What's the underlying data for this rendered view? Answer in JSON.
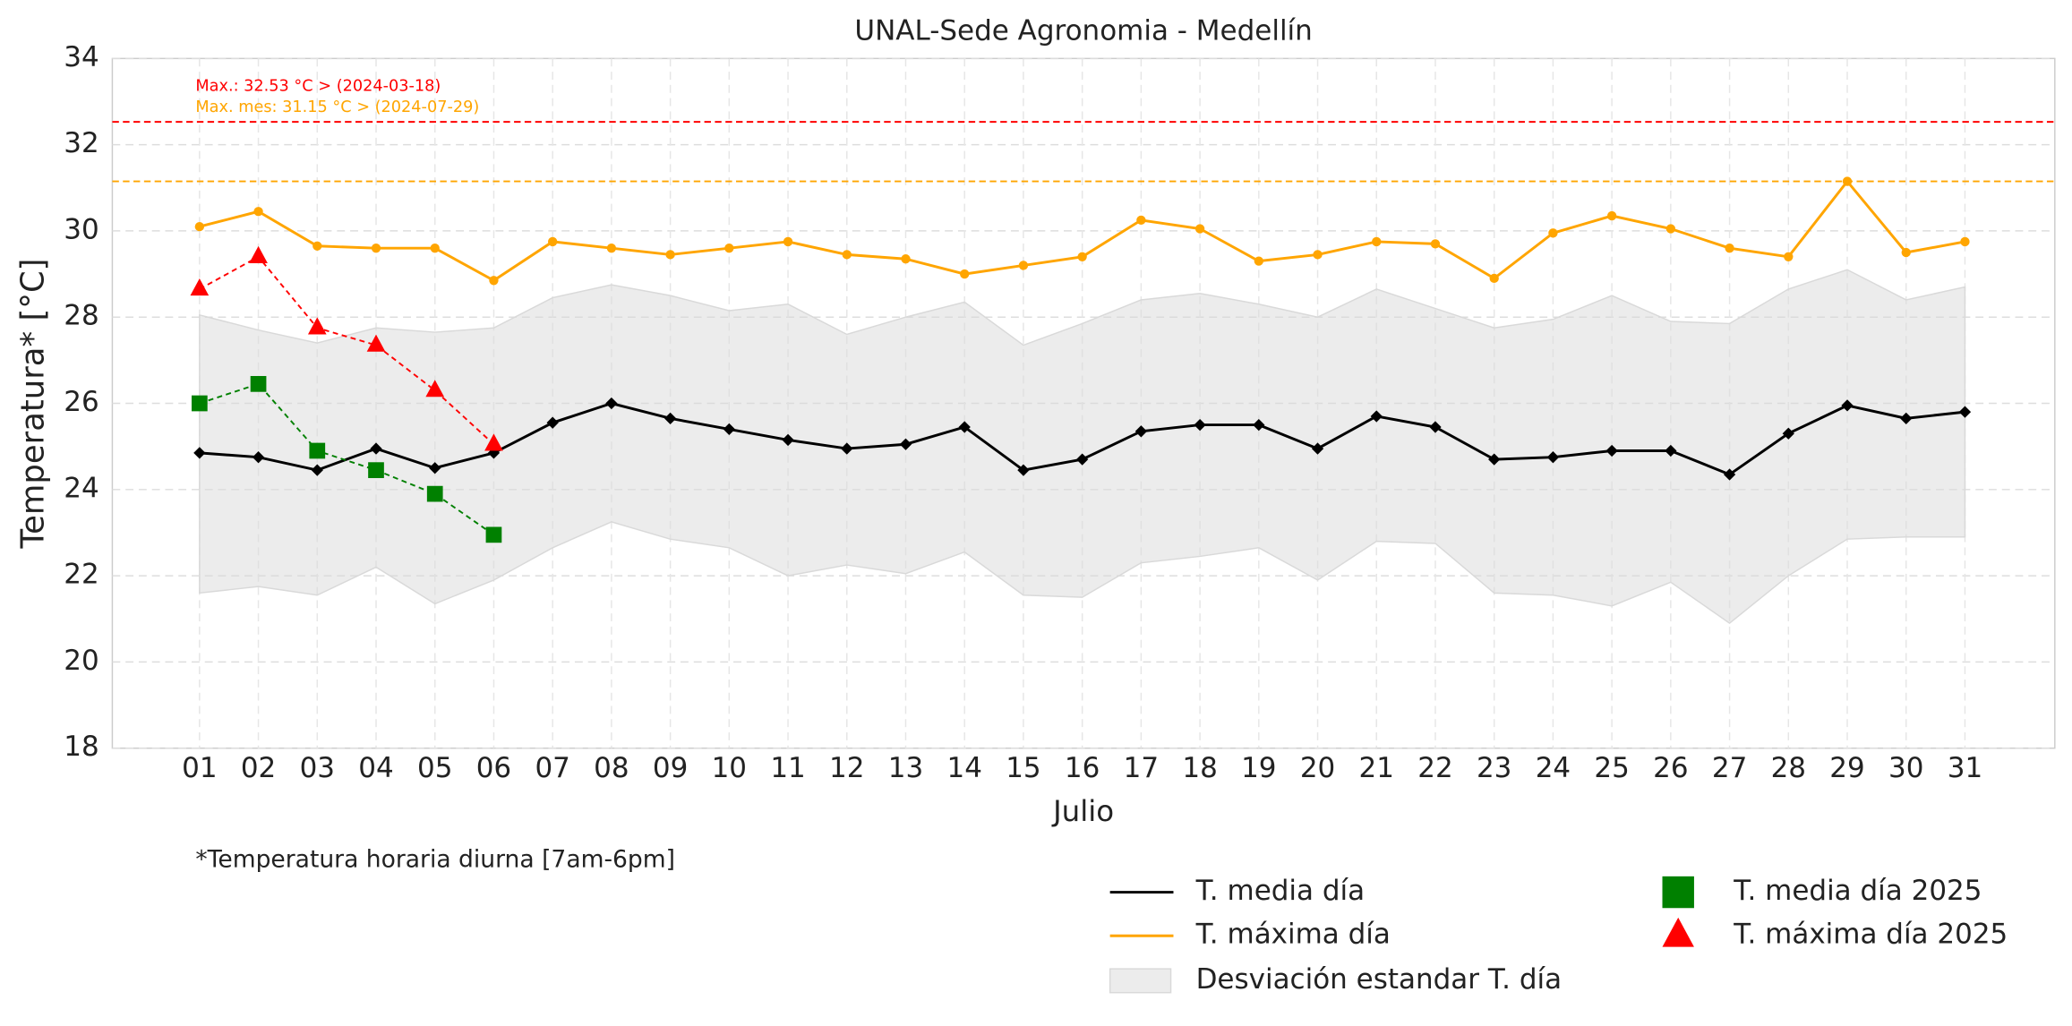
{
  "chart_data": {
    "type": "line",
    "title": "UNAL-Sede Agronomia - Medellín",
    "x_label": "Julio",
    "y_label": "Temperatura* [°C]",
    "footnote": "*Temperatura horaria diurna [7am-6pm]",
    "categories": [
      "01",
      "02",
      "03",
      "04",
      "05",
      "06",
      "07",
      "08",
      "09",
      "10",
      "11",
      "12",
      "13",
      "14",
      "15",
      "16",
      "17",
      "18",
      "19",
      "20",
      "21",
      "22",
      "23",
      "24",
      "25",
      "26",
      "27",
      "28",
      "29",
      "30",
      "31"
    ],
    "ylim": [
      18,
      34
    ],
    "yticks": [
      18,
      20,
      22,
      24,
      26,
      28,
      30,
      32,
      34
    ],
    "grid": true,
    "band": {
      "name": "Desviación estandar T. día",
      "color": "#d9d9d9",
      "upper": [
        28.05,
        27.7,
        27.4,
        27.75,
        27.65,
        27.75,
        28.45,
        28.75,
        28.5,
        28.15,
        28.3,
        27.6,
        28.0,
        28.35,
        27.35,
        27.85,
        28.4,
        28.55,
        28.3,
        28.0,
        28.65,
        28.2,
        27.75,
        27.95,
        28.5,
        27.9,
        27.85,
        28.65,
        29.1,
        28.4,
        28.7
      ],
      "lower": [
        21.6,
        21.75,
        21.55,
        22.2,
        21.35,
        21.9,
        22.65,
        23.25,
        22.85,
        22.65,
        22.0,
        22.25,
        22.05,
        22.55,
        21.55,
        21.5,
        22.3,
        22.45,
        22.65,
        21.9,
        22.8,
        22.75,
        21.6,
        21.55,
        21.3,
        21.85,
        20.9,
        22.0,
        22.85,
        22.9,
        22.9
      ]
    },
    "series": [
      {
        "name": "T. media día",
        "color": "#000000",
        "marker": "diamond",
        "style": "solid",
        "values": [
          24.85,
          24.75,
          24.45,
          24.95,
          24.5,
          24.85,
          25.55,
          26.0,
          25.65,
          25.4,
          25.15,
          24.95,
          25.05,
          25.45,
          24.45,
          24.7,
          25.35,
          25.5,
          25.5,
          24.95,
          25.7,
          25.45,
          24.7,
          24.75,
          24.9,
          24.9,
          24.35,
          25.3,
          25.95,
          25.65,
          25.8
        ]
      },
      {
        "name": "T. máxima día",
        "color": "#ffa500",
        "marker": "circle",
        "style": "solid",
        "values": [
          30.1,
          30.45,
          29.65,
          29.6,
          29.6,
          28.85,
          29.75,
          29.6,
          29.45,
          29.6,
          29.75,
          29.45,
          29.35,
          29.0,
          29.2,
          29.4,
          30.25,
          30.05,
          29.3,
          29.45,
          29.75,
          29.7,
          28.9,
          29.95,
          30.35,
          30.05,
          29.6,
          29.4,
          31.15,
          29.5,
          29.75
        ]
      },
      {
        "name": "T. media día 2025",
        "color": "#008000",
        "marker": "square",
        "style": "dashed",
        "values": [
          26.0,
          26.45,
          24.9,
          24.45,
          23.9,
          22.95,
          null,
          null,
          null,
          null,
          null,
          null,
          null,
          null,
          null,
          null,
          null,
          null,
          null,
          null,
          null,
          null,
          null,
          null,
          null,
          null,
          null,
          null,
          null,
          null,
          null
        ]
      },
      {
        "name": "T. máxima día 2025",
        "color": "#ff0000",
        "marker": "triangle",
        "style": "dashed",
        "values": [
          28.65,
          29.4,
          27.75,
          27.35,
          26.3,
          25.05,
          null,
          null,
          null,
          null,
          null,
          null,
          null,
          null,
          null,
          null,
          null,
          null,
          null,
          null,
          null,
          null,
          null,
          null,
          null,
          null,
          null,
          null,
          null,
          null,
          null
        ]
      }
    ],
    "reference_lines": [
      {
        "value": 32.53,
        "color": "#ff0000",
        "label": "Max.: 32.53 °C  >  (2024-03-18)"
      },
      {
        "value": 31.15,
        "color": "#ffa500",
        "label": "Max. mes: 31.15 °C  >  (2024-07-29)"
      }
    ]
  }
}
